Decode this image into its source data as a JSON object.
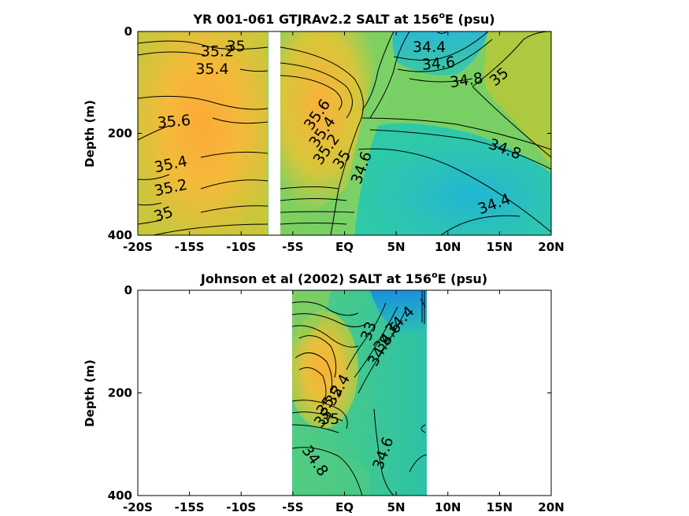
{
  "chart_data": [
    {
      "type": "contour",
      "title": "YR 001-061 GTJRAv2.2 SALT at 156",
      "title_sup": "o",
      "title_end": "E (psu)",
      "ylabel": "Depth (m)",
      "xlabel": "",
      "x_tick_labels": [
        "-20S",
        "-15S",
        "-10S",
        "-5S",
        "EQ",
        "5N",
        "10N",
        "15N",
        "20N"
      ],
      "x_ticks": [
        -20,
        -15,
        -10,
        -5,
        0,
        5,
        10,
        15,
        20
      ],
      "y_tick_labels": [
        "0",
        "200",
        "400"
      ],
      "y_ticks": [
        0,
        200,
        400
      ],
      "xlim": [
        -20,
        20
      ],
      "ylim": [
        400,
        0
      ],
      "y_reversed": true,
      "data_gap_x": [
        -7.3,
        -6.2
      ],
      "colormap": [
        "#1aa9d6",
        "#2cc2b0",
        "#6ad06a",
        "#b8c93a",
        "#f4ba3a",
        "#fbaa38"
      ],
      "contour_labels": [
        {
          "text": "35",
          "x": -10.5,
          "y": 30,
          "angle": 0
        },
        {
          "text": "35.2",
          "x": -12.3,
          "y": 40,
          "angle": 0
        },
        {
          "text": "35.4",
          "x": -12.8,
          "y": 75,
          "angle": 0
        },
        {
          "text": "35.6",
          "x": -16.5,
          "y": 178,
          "angle": -5
        },
        {
          "text": "35.4",
          "x": -16.8,
          "y": 262,
          "angle": -12
        },
        {
          "text": "35.2",
          "x": -16.8,
          "y": 308,
          "angle": -12
        },
        {
          "text": "35",
          "x": -17.5,
          "y": 360,
          "angle": -18
        },
        {
          "text": "35.6",
          "x": -2.6,
          "y": 164,
          "angle": -55
        },
        {
          "text": "35.4",
          "x": -2.1,
          "y": 198,
          "angle": -55
        },
        {
          "text": "35.2",
          "x": -1.7,
          "y": 232,
          "angle": -55
        },
        {
          "text": "35",
          "x": -0.2,
          "y": 252,
          "angle": -55
        },
        {
          "text": "34.6",
          "x": 1.7,
          "y": 268,
          "angle": -70
        },
        {
          "text": "34.4",
          "x": 8.2,
          "y": 32,
          "angle": 0
        },
        {
          "text": "34.6",
          "x": 9.1,
          "y": 64,
          "angle": -5
        },
        {
          "text": "34.8",
          "x": 11.8,
          "y": 97,
          "angle": -8
        },
        {
          "text": "35",
          "x": 15.0,
          "y": 90,
          "angle": -40
        },
        {
          "text": "34.8",
          "x": 15.5,
          "y": 232,
          "angle": 20
        },
        {
          "text": "34.4",
          "x": 14.5,
          "y": 340,
          "angle": -20
        }
      ]
    },
    {
      "type": "contour",
      "title": "Johnson et al (2002) SALT at 156",
      "title_sup": "o",
      "title_end": "E (psu)",
      "ylabel": "Depth (m)",
      "xlabel": "",
      "x_tick_labels": [
        "-20S",
        "-15S",
        "-10S",
        "-5S",
        "EQ",
        "5N",
        "10N",
        "15N",
        "20N"
      ],
      "x_ticks": [
        -20,
        -15,
        -10,
        -5,
        0,
        5,
        10,
        15,
        20
      ],
      "y_tick_labels": [
        "0",
        "200",
        "400"
      ],
      "y_ticks": [
        0,
        200,
        400
      ],
      "xlim": [
        -20,
        20
      ],
      "ylim": [
        400,
        0
      ],
      "y_reversed": true,
      "data_extent_x": [
        -5,
        8
      ],
      "colormap": [
        "#1a90e0",
        "#2cc2b0",
        "#6ad06a",
        "#b8c93a",
        "#f4ba3a"
      ],
      "contour_labels": [
        {
          "text": "34.4",
          "x": 5.4,
          "y": 60,
          "angle": -45
        },
        {
          "text": "33",
          "x": 2.4,
          "y": 80,
          "angle": -70
        },
        {
          "text": "34.6",
          "x": 4.2,
          "y": 92,
          "angle": -50
        },
        {
          "text": "34.8",
          "x": 3.5,
          "y": 118,
          "angle": -60
        },
        {
          "text": "35.4",
          "x": -0.6,
          "y": 195,
          "angle": -60
        },
        {
          "text": "35.2",
          "x": -1.4,
          "y": 215,
          "angle": -55
        },
        {
          "text": "35",
          "x": -2.0,
          "y": 250,
          "angle": -50
        },
        {
          "text": "35",
          "x": -1.4,
          "y": 252,
          "angle": 0
        },
        {
          "text": "34.8",
          "x": -2.9,
          "y": 333,
          "angle": 55
        },
        {
          "text": "34.6",
          "x": 3.8,
          "y": 318,
          "angle": -70
        }
      ]
    }
  ]
}
